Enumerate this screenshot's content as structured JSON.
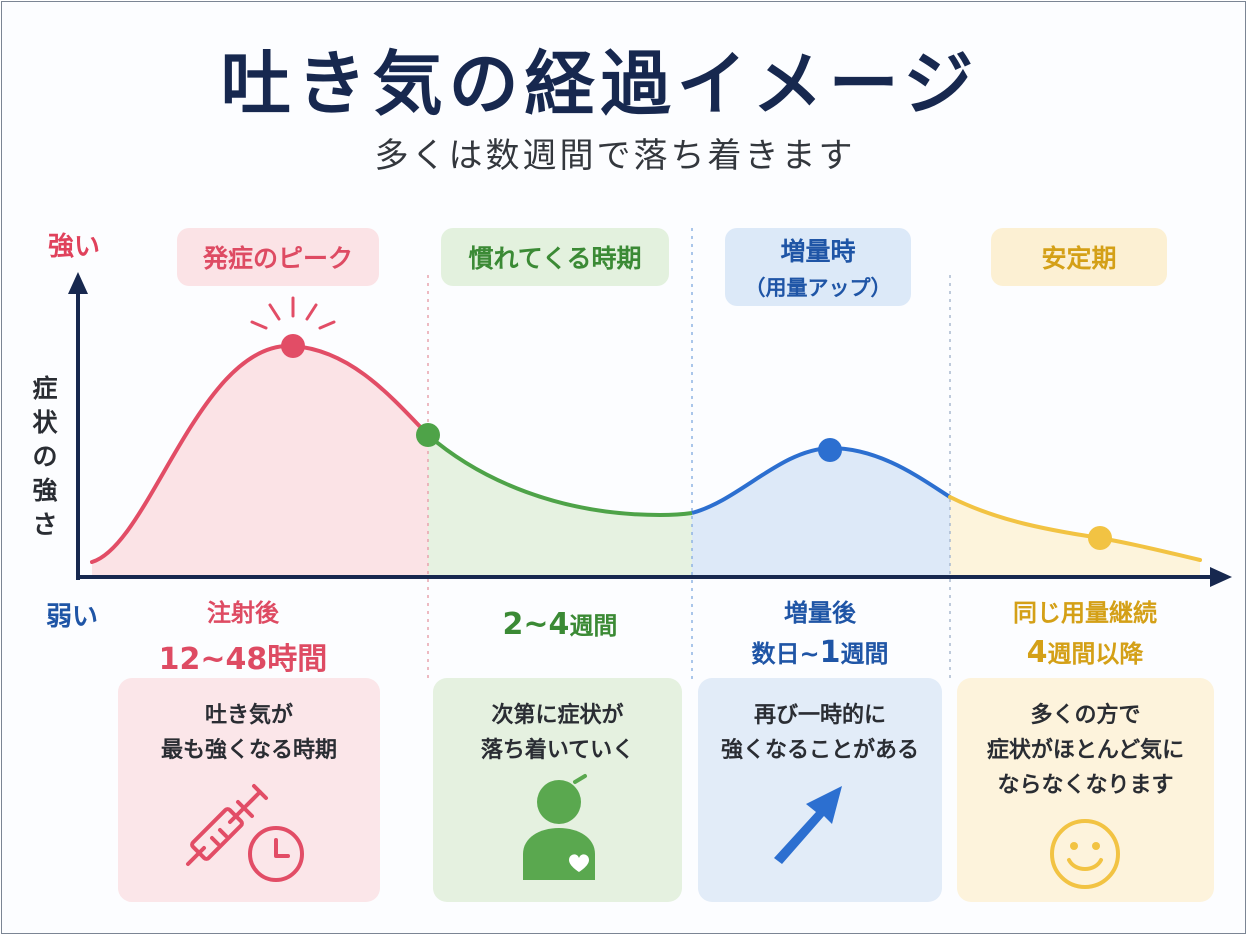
{
  "title": "吐き気の経過イメージ",
  "subtitle": "多くは数週間で落ち着きます",
  "axis": {
    "strong_label": "強い",
    "weak_label": "弱い",
    "y_label": [
      "症",
      "状",
      "の",
      "強",
      "さ"
    ]
  },
  "colors": {
    "phase1": "#e24d66",
    "phase2": "#4ea348",
    "phase3": "#2c6fd0",
    "phase4": "#f2c343",
    "axis": "#17284f"
  },
  "phases": [
    {
      "label": "発症のピーク",
      "time_line1": "注射後",
      "time_line2": "12~48時間",
      "card_lines": [
        "吐き気が",
        "最も強くなる時期"
      ],
      "icon": "syringe-clock-icon"
    },
    {
      "label": "慣れてくる時期",
      "time_line1": "",
      "time_line2_num": "2~4",
      "time_line2_unit": "週間",
      "card_lines": [
        "次第に症状が",
        "落ち着いていく"
      ],
      "icon": "person-heart-icon"
    },
    {
      "label": "増量時",
      "label_sub": "（用量アップ）",
      "time_line1": "増量後",
      "time_line2_pre": "数日~",
      "time_line2_num": "1",
      "time_line2_unit": "週間",
      "card_lines": [
        "再び一時的に",
        "強くなることがある"
      ],
      "icon": "arrow-up-right-icon"
    },
    {
      "label": "安定期",
      "time_line1": "同じ用量継続",
      "time_line2_num": "4",
      "time_line2_unit": "週間以降",
      "card_lines": [
        "多くの方で",
        "症状がほとんど気に",
        "ならなくなります"
      ],
      "icon": "smiley-icon"
    }
  ]
}
